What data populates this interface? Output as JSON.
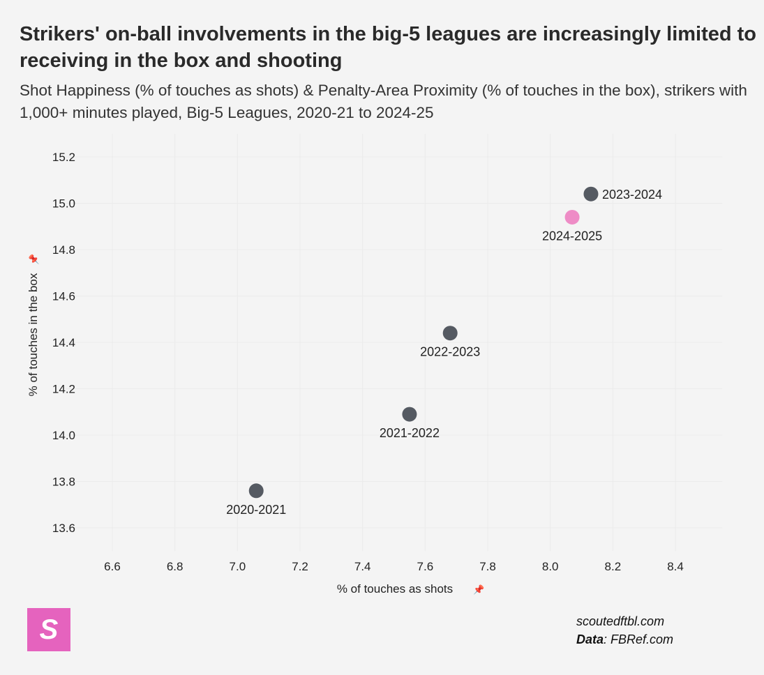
{
  "title": "Strikers' on-ball involvements in the big-5 leagues are increasingly limited to receiving in the box and shooting",
  "subtitle": "Shot Happiness (% of touches as shots) & Penalty-Area Proximity (% of touches in the box), strikers with 1,000+ minutes played, Big-5 Leagues, 2020-21 to 2024-25",
  "chart_data": {
    "type": "scatter",
    "xlabel": "% of touches as shots",
    "ylabel": "% of touches in the box",
    "xlim": [
      6.45,
      8.55
    ],
    "ylim": [
      13.5,
      15.3
    ],
    "x_ticks": [
      "6.6",
      "6.8",
      "7.0",
      "7.2",
      "7.4",
      "7.6",
      "7.8",
      "8.0",
      "8.2",
      "8.4"
    ],
    "y_ticks": [
      "13.6",
      "13.8",
      "14.0",
      "14.2",
      "14.4",
      "14.6",
      "14.8",
      "15.0",
      "15.2"
    ],
    "grid": true,
    "points": [
      {
        "label": "2020-2021",
        "x": 7.06,
        "y": 13.76,
        "color": "#555a62"
      },
      {
        "label": "2021-2022",
        "x": 7.55,
        "y": 14.09,
        "color": "#555a62"
      },
      {
        "label": "2022-2023",
        "x": 7.68,
        "y": 14.44,
        "color": "#555a62"
      },
      {
        "label": "2023-2024",
        "x": 8.13,
        "y": 15.04,
        "color": "#555a62"
      },
      {
        "label": "2024-2025",
        "x": 8.07,
        "y": 14.94,
        "color": "#ee8cc6"
      }
    ]
  },
  "logo": {
    "letter": "S",
    "color": "#e563be"
  },
  "credit": {
    "site": "scoutedftbl.com",
    "data_label": "Data",
    "data_source": ": FBRef.com"
  }
}
